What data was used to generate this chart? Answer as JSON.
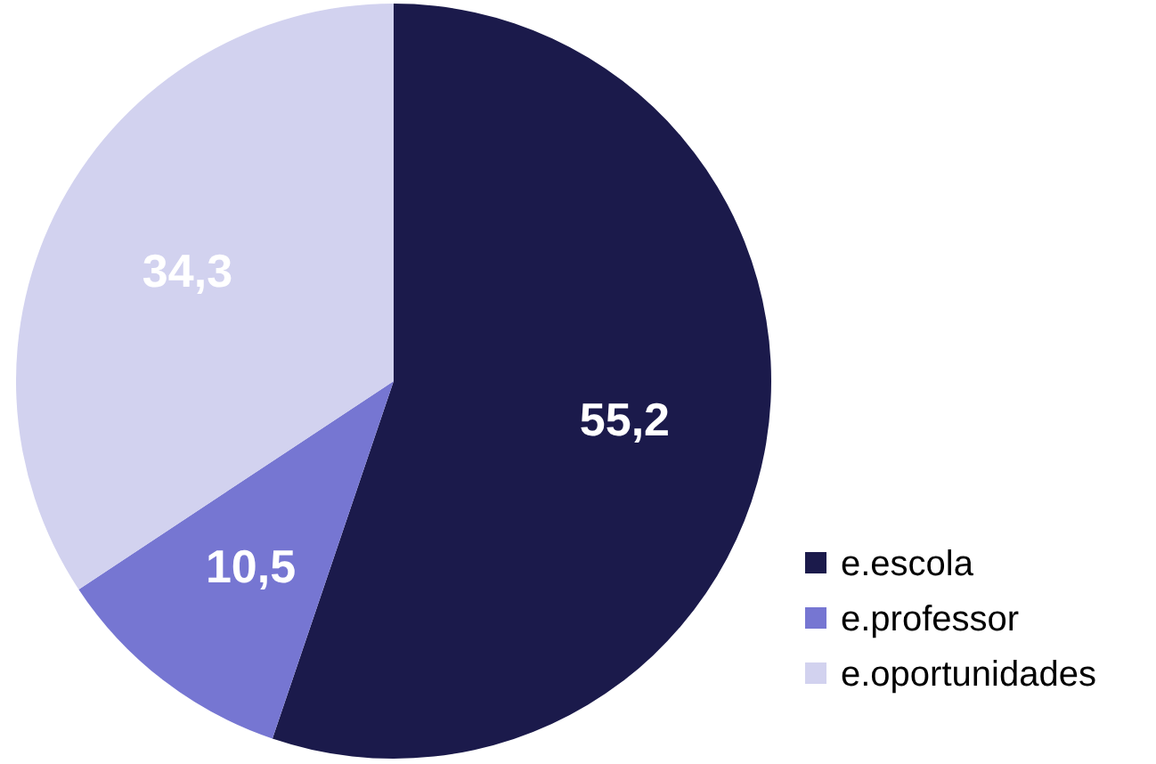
{
  "chart_data": {
    "type": "pie",
    "categories": [
      "e.escola",
      "e.professor",
      "e.oportunidades"
    ],
    "values": [
      55.2,
      10.5,
      34.3
    ],
    "colors": [
      "#1b1a4b",
      "#7676d2",
      "#d2d2ef"
    ],
    "value_labels": [
      "55,2",
      "10,5",
      "34,3"
    ],
    "legend": "bottom right"
  }
}
